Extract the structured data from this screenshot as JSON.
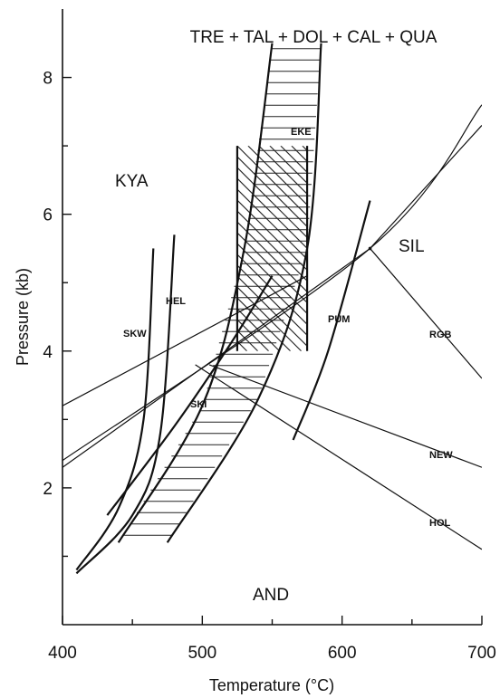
{
  "chart_data": {
    "type": "line",
    "title": "TRE + TAL + DOL + CAL + QUA",
    "xlabel": "Temperature (°C)",
    "ylabel": "Pressure (kb)",
    "xlim": [
      400,
      700
    ],
    "ylim": [
      0,
      9
    ],
    "xticks": [
      400,
      500,
      600,
      700
    ],
    "yticks": [
      2,
      4,
      6,
      8
    ],
    "grid": false,
    "field_labels": [
      "KYA",
      "SIL",
      "AND"
    ],
    "triple_point": {
      "x": 620,
      "y": 5.5
    },
    "series": [
      {
        "name": "KYA-AND boundary",
        "points": [
          [
            400,
            2.4
          ],
          [
            620,
            5.5
          ],
          [
            700,
            7.6
          ]
        ]
      },
      {
        "name": "KYA-SIL boundary",
        "points": [
          [
            620,
            5.5
          ],
          [
            700,
            7.3
          ]
        ]
      },
      {
        "name": "AND-SIL boundary",
        "points": [
          [
            620,
            5.5
          ],
          [
            700,
            3.6
          ]
        ]
      },
      {
        "name": "",
        "points": [
          [
            400,
            3.2
          ],
          [
            575,
            5.1
          ]
        ]
      },
      {
        "name": "",
        "points": [
          [
            400,
            2.3
          ],
          [
            620,
            5.5
          ]
        ]
      },
      {
        "name": "",
        "points": [
          [
            505,
            3.8
          ],
          [
            700,
            2.3
          ]
        ]
      },
      {
        "name": "",
        "points": [
          [
            495,
            3.8
          ],
          [
            700,
            1.1
          ]
        ]
      },
      {
        "name": "SKW",
        "points": [
          [
            410,
            0.8
          ],
          [
            440,
            1.7
          ],
          [
            458,
            3.0
          ],
          [
            465,
            5.5
          ]
        ]
      },
      {
        "name": "HEL",
        "points": [
          [
            410,
            0.75
          ],
          [
            450,
            1.6
          ],
          [
            470,
            2.8
          ],
          [
            480,
            5.7
          ]
        ]
      },
      {
        "name": "SKI",
        "points": [
          [
            432,
            1.6
          ],
          [
            480,
            2.9
          ],
          [
            520,
            4.1
          ],
          [
            550,
            5.1
          ]
        ]
      },
      {
        "name": "PUM",
        "points": [
          [
            565,
            2.7
          ],
          [
            590,
            4.0
          ],
          [
            620,
            6.2
          ]
        ]
      },
      {
        "name": "Hatched field lower boundary",
        "points": [
          [
            440,
            1.2
          ],
          [
            500,
            3.2
          ],
          [
            530,
            5.5
          ],
          [
            550,
            8.5
          ]
        ]
      },
      {
        "name": "Hatched field upper boundary",
        "points": [
          [
            475,
            1.2
          ],
          [
            540,
            3.3
          ],
          [
            575,
            5.5
          ],
          [
            585,
            8.5
          ]
        ]
      },
      {
        "name": "EKE",
        "points": [
          [
            525,
            4.0
          ],
          [
            525,
            7.0
          ],
          [
            575,
            7.0
          ],
          [
            575,
            4.0
          ]
        ]
      }
    ],
    "curve_labels": [
      "SKW",
      "HEL",
      "SKI",
      "EKE",
      "PUM",
      "RGB",
      "NEW",
      "HOL"
    ],
    "hatched_field": {
      "x_range": [
        440,
        585
      ],
      "y_range": [
        1.2,
        8.5
      ]
    },
    "cross_hatched_field": {
      "x_range": [
        525,
        575
      ],
      "y_range": [
        4.0,
        7.0
      ]
    }
  }
}
